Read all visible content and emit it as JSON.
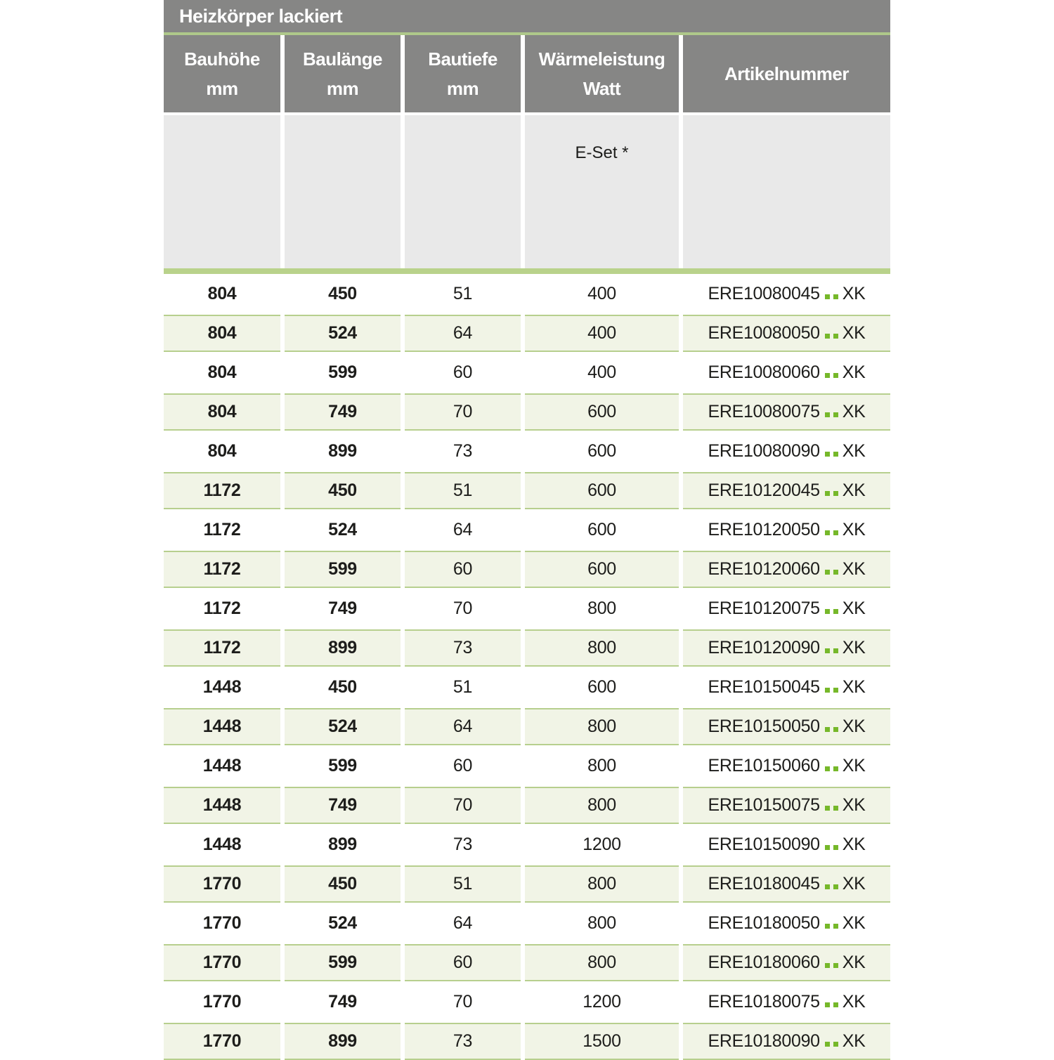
{
  "title": "Heizkörper lackiert",
  "table": {
    "columns": [
      {
        "label": "Bauhöhe",
        "unit": "mm"
      },
      {
        "label": "Baulänge",
        "unit": "mm"
      },
      {
        "label": "Bautiefe",
        "unit": "mm"
      },
      {
        "label": "Wärmeleistung",
        "unit": "Watt"
      },
      {
        "label": "Artikelnummer",
        "unit": ""
      }
    ],
    "subheader": {
      "e_set_label": "E-Set *"
    },
    "rows": [
      {
        "bauhoehe": "804",
        "baulaenge": "450",
        "bautiefe": "51",
        "waermeleistung": "400",
        "artikel_prefix": "ERE10080045",
        "artikel_suffix": "XK"
      },
      {
        "bauhoehe": "804",
        "baulaenge": "524",
        "bautiefe": "64",
        "waermeleistung": "400",
        "artikel_prefix": "ERE10080050",
        "artikel_suffix": "XK"
      },
      {
        "bauhoehe": "804",
        "baulaenge": "599",
        "bautiefe": "60",
        "waermeleistung": "400",
        "artikel_prefix": "ERE10080060",
        "artikel_suffix": "XK"
      },
      {
        "bauhoehe": "804",
        "baulaenge": "749",
        "bautiefe": "70",
        "waermeleistung": "600",
        "artikel_prefix": "ERE10080075",
        "artikel_suffix": "XK"
      },
      {
        "bauhoehe": "804",
        "baulaenge": "899",
        "bautiefe": "73",
        "waermeleistung": "600",
        "artikel_prefix": "ERE10080090",
        "artikel_suffix": "XK"
      },
      {
        "bauhoehe": "1172",
        "baulaenge": "450",
        "bautiefe": "51",
        "waermeleistung": "600",
        "artikel_prefix": "ERE10120045",
        "artikel_suffix": "XK"
      },
      {
        "bauhoehe": "1172",
        "baulaenge": "524",
        "bautiefe": "64",
        "waermeleistung": "600",
        "artikel_prefix": "ERE10120050",
        "artikel_suffix": "XK"
      },
      {
        "bauhoehe": "1172",
        "baulaenge": "599",
        "bautiefe": "60",
        "waermeleistung": "600",
        "artikel_prefix": "ERE10120060",
        "artikel_suffix": "XK"
      },
      {
        "bauhoehe": "1172",
        "baulaenge": "749",
        "bautiefe": "70",
        "waermeleistung": "800",
        "artikel_prefix": "ERE10120075",
        "artikel_suffix": "XK"
      },
      {
        "bauhoehe": "1172",
        "baulaenge": "899",
        "bautiefe": "73",
        "waermeleistung": "800",
        "artikel_prefix": "ERE10120090",
        "artikel_suffix": "XK"
      },
      {
        "bauhoehe": "1448",
        "baulaenge": "450",
        "bautiefe": "51",
        "waermeleistung": "600",
        "artikel_prefix": "ERE10150045",
        "artikel_suffix": "XK"
      },
      {
        "bauhoehe": "1448",
        "baulaenge": "524",
        "bautiefe": "64",
        "waermeleistung": "800",
        "artikel_prefix": "ERE10150050",
        "artikel_suffix": "XK"
      },
      {
        "bauhoehe": "1448",
        "baulaenge": "599",
        "bautiefe": "60",
        "waermeleistung": "800",
        "artikel_prefix": "ERE10150060",
        "artikel_suffix": "XK"
      },
      {
        "bauhoehe": "1448",
        "baulaenge": "749",
        "bautiefe": "70",
        "waermeleistung": "800",
        "artikel_prefix": "ERE10150075",
        "artikel_suffix": "XK"
      },
      {
        "bauhoehe": "1448",
        "baulaenge": "899",
        "bautiefe": "73",
        "waermeleistung": "1200",
        "artikel_prefix": "ERE10150090",
        "artikel_suffix": "XK"
      },
      {
        "bauhoehe": "1770",
        "baulaenge": "450",
        "bautiefe": "51",
        "waermeleistung": "800",
        "artikel_prefix": "ERE10180045",
        "artikel_suffix": "XK"
      },
      {
        "bauhoehe": "1770",
        "baulaenge": "524",
        "bautiefe": "64",
        "waermeleistung": "800",
        "artikel_prefix": "ERE10180050",
        "artikel_suffix": "XK"
      },
      {
        "bauhoehe": "1770",
        "baulaenge": "599",
        "bautiefe": "60",
        "waermeleistung": "800",
        "artikel_prefix": "ERE10180060",
        "artikel_suffix": "XK"
      },
      {
        "bauhoehe": "1770",
        "baulaenge": "749",
        "bautiefe": "70",
        "waermeleistung": "1200",
        "artikel_prefix": "ERE10180075",
        "artikel_suffix": "XK"
      },
      {
        "bauhoehe": "1770",
        "baulaenge": "899",
        "bautiefe": "73",
        "waermeleistung": "1500",
        "artikel_prefix": "ERE10180090",
        "artikel_suffix": "XK"
      }
    ]
  },
  "colors": {
    "header_gray": "#868685",
    "subheader_gray": "#e9e9e9",
    "accent_green": "#76b82a",
    "rule_green": "#b7cf8e",
    "bar_green": "#b9d28b",
    "shaded_row": "#f1f4e6",
    "text": "#1d1d1b"
  }
}
